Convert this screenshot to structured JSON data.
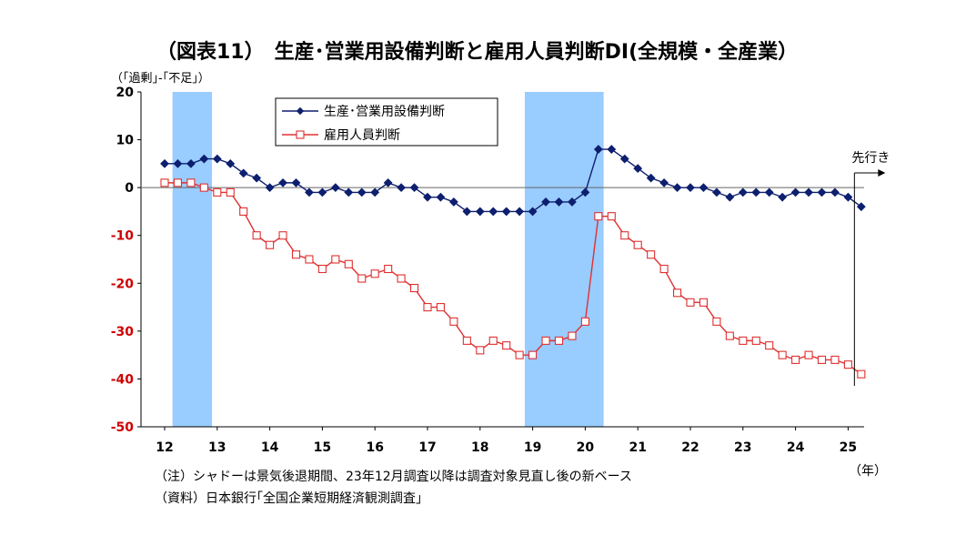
{
  "title": "（図表11）　生産･営業用設備判断と雇用人員判断DI(全規模・全産業）",
  "y_unit_note": "（｢過剰｣-｢不足｣）",
  "x_unit_note": "（年）",
  "forecast_label": "先行き",
  "notes": [
    "（注）シャドーは景気後退期間、23年12月調査以降は調査対象見直し後の新ベース",
    "（資料）日本銀行｢全国企業短期経済観測調査｣"
  ],
  "colors": {
    "equipment": "#0d1f6e",
    "employment": "#e03030",
    "shade": "#99ccff",
    "negative_tick": "#d00000",
    "axis": "#000000"
  },
  "chart_data": {
    "type": "line",
    "x_ticks": [
      "12",
      "13",
      "14",
      "15",
      "16",
      "17",
      "18",
      "19",
      "20",
      "21",
      "22",
      "23",
      "24",
      "25"
    ],
    "y_ticks": [
      20,
      10,
      0,
      -10,
      -20,
      -30,
      -40,
      -50
    ],
    "ylim": [
      -50,
      20
    ],
    "xlim_years": [
      2012.0,
      2025.6
    ],
    "recession_periods": [
      [
        2012.15,
        2012.9
      ],
      [
        2018.85,
        2020.35
      ]
    ],
    "forecast_marker_year": 2025.12,
    "series": [
      {
        "name": "生産･営業用設備判断",
        "marker": "filled-diamond",
        "x_start_year": 2012.0,
        "quarter_step": 0.25,
        "values": [
          5,
          5,
          5,
          6,
          6,
          5,
          3,
          2,
          0,
          1,
          1,
          -1,
          -1,
          0,
          -1,
          -1,
          -1,
          1,
          0,
          0,
          -2,
          -2,
          -3,
          -5,
          -5,
          -5,
          -5,
          -5,
          -5,
          -3,
          -3,
          -3,
          -1,
          8,
          8,
          6,
          4,
          2,
          1,
          0,
          0,
          0,
          -1,
          -2,
          -1,
          -1,
          -1,
          -2,
          -1,
          -1,
          -1,
          -1,
          -2,
          -4
        ]
      },
      {
        "name": "雇用人員判断",
        "marker": "hollow-square",
        "x_start_year": 2012.0,
        "quarter_step": 0.25,
        "values": [
          1,
          1,
          1,
          0,
          -1,
          -1,
          -5,
          -10,
          -12,
          -10,
          -14,
          -15,
          -17,
          -15,
          -16,
          -19,
          -18,
          -17,
          -19,
          -21,
          -25,
          -25,
          -28,
          -32,
          -34,
          -32,
          -33,
          -35,
          -35,
          -32,
          -32,
          -31,
          -28,
          -6,
          -6,
          -10,
          -12,
          -14,
          -17,
          -22,
          -24,
          -24,
          -28,
          -31,
          -32,
          -32,
          -33,
          -35,
          -36,
          -35,
          -36,
          -36,
          -37,
          -39
        ]
      }
    ]
  }
}
